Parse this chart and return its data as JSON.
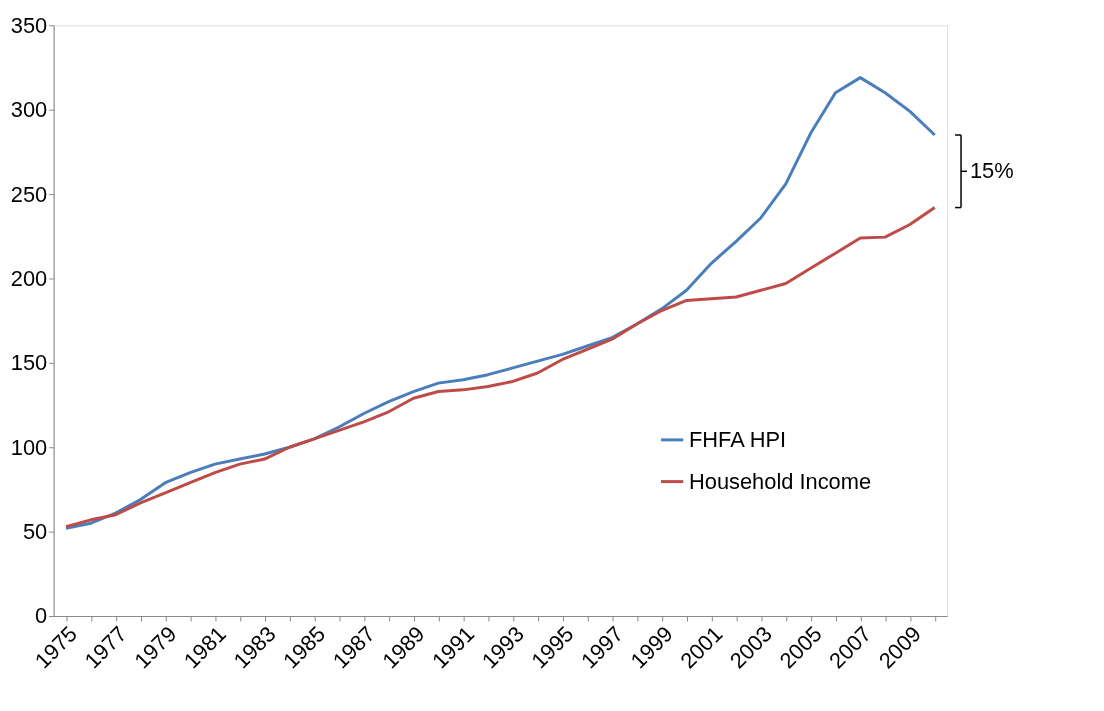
{
  "chart_data": {
    "type": "line",
    "categories": [
      "1975",
      null,
      "1977",
      null,
      "1979",
      null,
      "1981",
      null,
      "1983",
      null,
      "1985",
      null,
      "1987",
      null,
      "1989",
      null,
      "1991",
      null,
      "1993",
      null,
      "1995",
      null,
      "1997",
      null,
      "1999",
      null,
      "2001",
      null,
      "2003",
      null,
      "2005",
      null,
      "2007",
      null,
      "2009",
      null
    ],
    "series": [
      {
        "name": "FHFA HPI",
        "color": "#4a7ebb",
        "values": [
          52,
          55,
          61,
          69,
          79,
          85,
          90,
          93,
          96,
          100,
          105,
          112,
          120,
          127,
          133,
          138,
          140,
          143,
          147,
          151,
          155,
          160,
          165,
          173,
          182,
          193,
          209,
          222,
          236,
          256,
          286,
          310,
          319,
          310,
          299,
          285
        ]
      },
      {
        "name": "Household Income",
        "color": "#be4b48",
        "values": [
          53,
          57,
          60,
          67,
          73,
          79,
          85,
          90,
          93,
          100,
          105,
          110,
          115,
          121,
          129,
          133,
          134,
          136,
          139,
          144,
          152,
          158,
          164,
          173,
          181,
          187,
          188,
          189,
          193,
          197,
          206,
          215,
          224,
          224.5,
          232,
          242
        ]
      }
    ],
    "ylim": [
      0,
      350
    ],
    "yticks": [
      0,
      50,
      100,
      150,
      200,
      250,
      300,
      350
    ],
    "annotations": [
      "15%"
    ],
    "legend": "right",
    "grid": false,
    "marker": "none",
    "line_style": "solid"
  }
}
